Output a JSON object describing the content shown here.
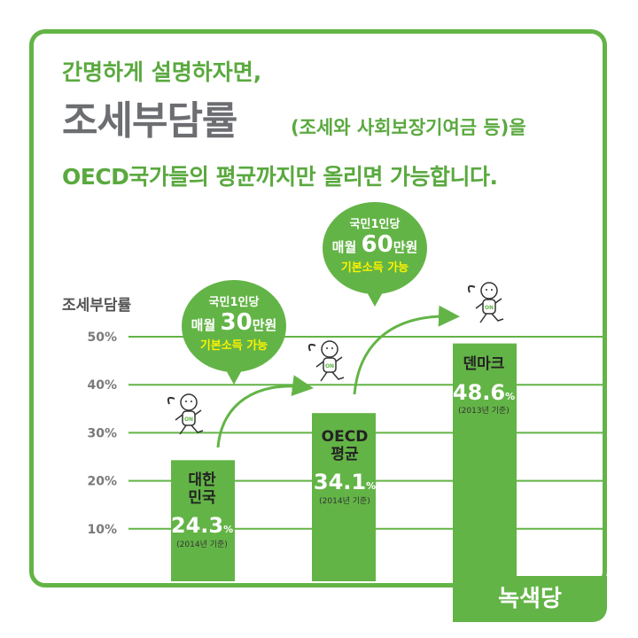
{
  "headline": {
    "line1": "간명하게 설명하자면,",
    "line2_big": "조세부담률",
    "line2_small": "(조세와 사회보장기여금 등)을",
    "line3": "OECD국가들의 평균까지만 올리면 가능합니다."
  },
  "chart_data": {
    "type": "bar",
    "ylabel": "조세부담률",
    "ylim": [
      0,
      50
    ],
    "yticks": [
      "10%",
      "20%",
      "30%",
      "40%",
      "50%"
    ],
    "grid": true,
    "categories": [
      "대한 민국",
      "OECD 평균",
      "덴마크"
    ],
    "values": [
      24.3,
      34.1,
      48.6
    ],
    "value_labels": [
      "24.3",
      "34.1",
      "48.6"
    ],
    "notes": [
      "(2014년 기준)",
      "(2014년 기준)",
      "(2013년 기준)"
    ],
    "colors": {
      "bar": "#63b446",
      "grid": "#63b446",
      "arrow": "#63b446"
    }
  },
  "bars": [
    {
      "name_line1": "대한",
      "name_line2": "민국",
      "value": "24.3",
      "unit": "%",
      "note": "(2014년 기준)"
    },
    {
      "name_line1": "OECD",
      "name_line2": "평균",
      "value": "34.1",
      "unit": "%",
      "note": "(2014년 기준)"
    },
    {
      "name_line1": "덴마크",
      "name_line2": "",
      "value": "48.6",
      "unit": "%",
      "note": "(2013년 기준)"
    }
  ],
  "bubbles": [
    {
      "line1": "국민1인당",
      "line2_pre": "매월",
      "amount": "30",
      "line2_post": "만원",
      "line3": "기본소득 가능"
    },
    {
      "line1": "국민1인당",
      "line2_pre": "매월",
      "amount": "60",
      "line2_post": "만원",
      "line3": "기본소득 가능"
    }
  ],
  "figure_text": "ON",
  "brand": "녹색당",
  "colors": {
    "accent": "#63b446",
    "title_gray": "#6d6e71",
    "highlight": "#fff200"
  }
}
